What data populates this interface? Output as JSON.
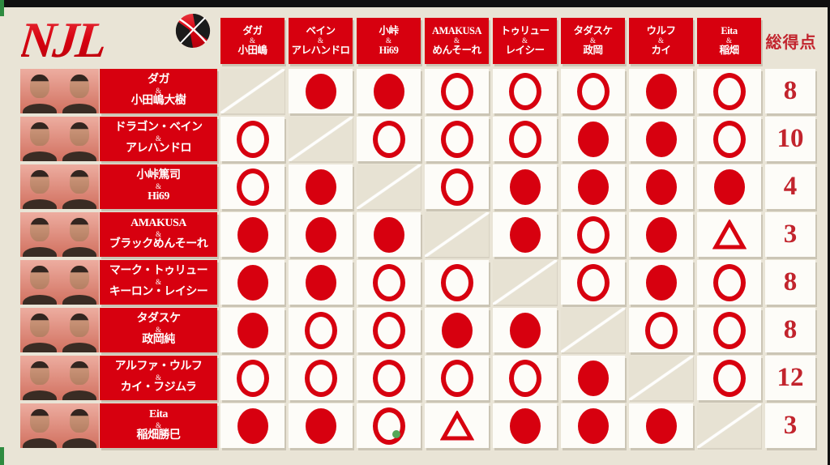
{
  "logo": {
    "text": "NJL"
  },
  "colors": {
    "accent_red": "#d7000f",
    "background_cream": "#e9e4d6",
    "cell_white": "#fdfcf8",
    "self_cell": "#e7e2d3",
    "total_red": "#c2242d",
    "green_marker": "#55a757"
  },
  "header": {
    "total_label": "総得点",
    "columns": [
      {
        "top": "ダガ",
        "amp": "&",
        "bottom": "小田嶋"
      },
      {
        "top": "ベイン",
        "amp": "&",
        "bottom": "アレハンドロ"
      },
      {
        "top": "小峠",
        "amp": "&",
        "bottom": "Hi69"
      },
      {
        "top": "AMAKUSA",
        "amp": "&",
        "bottom": "めんそーれ"
      },
      {
        "top": "トゥリュー",
        "amp": "&",
        "bottom": "レイシー"
      },
      {
        "top": "タダスケ",
        "amp": "&",
        "bottom": "政岡"
      },
      {
        "top": "ウルフ",
        "amp": "&",
        "bottom": "カイ"
      },
      {
        "top": "Eita",
        "amp": "&",
        "bottom": "稲畑"
      }
    ]
  },
  "teams": [
    {
      "line1": "ダガ",
      "amp": "&",
      "line2": "小田嶋大樹",
      "results": [
        "self",
        "filled",
        "filled",
        "open",
        "open",
        "open",
        "filled",
        "open"
      ],
      "total": "8"
    },
    {
      "line1": "ドラゴン・ベイン",
      "amp": "&",
      "line2": "アレハンドロ",
      "results": [
        "open",
        "self",
        "open",
        "open",
        "open",
        "filled",
        "filled",
        "open"
      ],
      "total": "10"
    },
    {
      "line1": "小峠篤司",
      "amp": "&",
      "line2": "Hi69",
      "results": [
        "open",
        "filled",
        "self",
        "open",
        "filled",
        "filled",
        "filled",
        "filled"
      ],
      "total": "4"
    },
    {
      "line1": "AMAKUSA",
      "amp": "&",
      "line2": "ブラックめんそーれ",
      "results": [
        "filled",
        "filled",
        "filled",
        "self",
        "filled",
        "open",
        "filled",
        "triangle"
      ],
      "total": "3"
    },
    {
      "line1": "マーク・トゥリュー",
      "amp": "&",
      "line2": "キーロン・レイシー",
      "results": [
        "filled",
        "filled",
        "open",
        "open",
        "self",
        "open",
        "filled",
        "open"
      ],
      "total": "8"
    },
    {
      "line1": "タダスケ",
      "amp": "&",
      "line2": "政岡純",
      "results": [
        "filled",
        "open",
        "open",
        "filled",
        "filled",
        "self",
        "open",
        "open"
      ],
      "total": "8"
    },
    {
      "line1": "アルファ・ウルフ",
      "amp": "&",
      "line2": "カイ・フジムラ",
      "results": [
        "open",
        "open",
        "open",
        "open",
        "open",
        "filled",
        "self",
        "open"
      ],
      "total": "12"
    },
    {
      "line1": "Eita",
      "amp": "&",
      "line2": "稲畑勝巳",
      "results": [
        "filled",
        "filled",
        "open",
        "triangle",
        "filled",
        "filled",
        "filled",
        "self"
      ],
      "total": "3"
    }
  ],
  "green_dot": {
    "row": 7,
    "col": 2
  },
  "chart_data": {
    "type": "table",
    "title": "NJL",
    "columns": [
      "ダガ&小田嶋",
      "ベイン&アレハンドロ",
      "小峠&Hi69",
      "AMAKUSA&めんそーれ",
      "トゥリュー&レイシー",
      "タダスケ&政岡",
      "ウルフ&カイ",
      "Eita&稲畑",
      "総得点"
    ],
    "rows": [
      {
        "team": "ダガ&小田嶋大樹",
        "results": [
          "－",
          "●",
          "●",
          "○",
          "○",
          "○",
          "●",
          "○"
        ],
        "total": 8
      },
      {
        "team": "ドラゴン・ベイン&アレハンドロ",
        "results": [
          "○",
          "－",
          "○",
          "○",
          "○",
          "●",
          "●",
          "○"
        ],
        "total": 10
      },
      {
        "team": "小峠篤司&Hi69",
        "results": [
          "○",
          "●",
          "－",
          "○",
          "●",
          "●",
          "●",
          "●"
        ],
        "total": 4
      },
      {
        "team": "AMAKUSA&ブラックめんそーれ",
        "results": [
          "●",
          "●",
          "●",
          "－",
          "●",
          "○",
          "●",
          "△"
        ],
        "total": 3
      },
      {
        "team": "マーク・トゥリュー&キーロン・レイシー",
        "results": [
          "●",
          "●",
          "○",
          "○",
          "－",
          "○",
          "●",
          "○"
        ],
        "total": 8
      },
      {
        "team": "タダスケ&政岡純",
        "results": [
          "●",
          "○",
          "○",
          "●",
          "●",
          "－",
          "○",
          "○"
        ],
        "total": 8
      },
      {
        "team": "アルファ・ウルフ&カイ・フジムラ",
        "results": [
          "○",
          "○",
          "○",
          "○",
          "○",
          "●",
          "－",
          "○"
        ],
        "total": 12
      },
      {
        "team": "Eita&稲畑勝巳",
        "results": [
          "●",
          "●",
          "○",
          "△",
          "●",
          "●",
          "●",
          "－"
        ],
        "total": 3
      }
    ]
  }
}
